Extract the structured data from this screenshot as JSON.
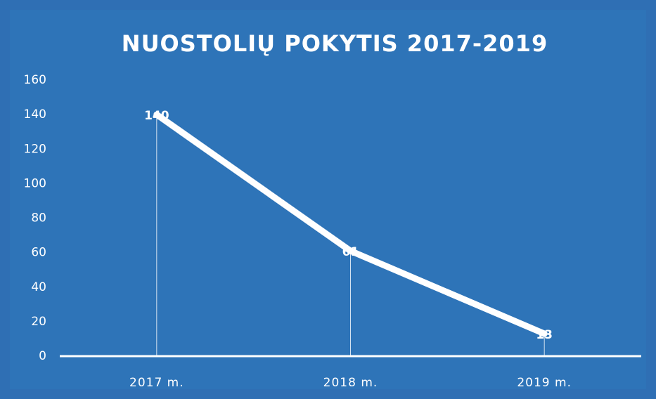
{
  "chart_data": {
    "type": "line",
    "title": "NUOSTOLIŲ POKYTIS 2017-2019",
    "categories": [
      "2017 m.",
      "2018 m.",
      "2019 m."
    ],
    "values": [
      140,
      61,
      13
    ],
    "color": "#ffffff",
    "ylim": [
      0,
      160
    ],
    "yticks": [
      0,
      20,
      40,
      60,
      80,
      100,
      120,
      140,
      160
    ],
    "grid": false,
    "drop_lines": true
  }
}
